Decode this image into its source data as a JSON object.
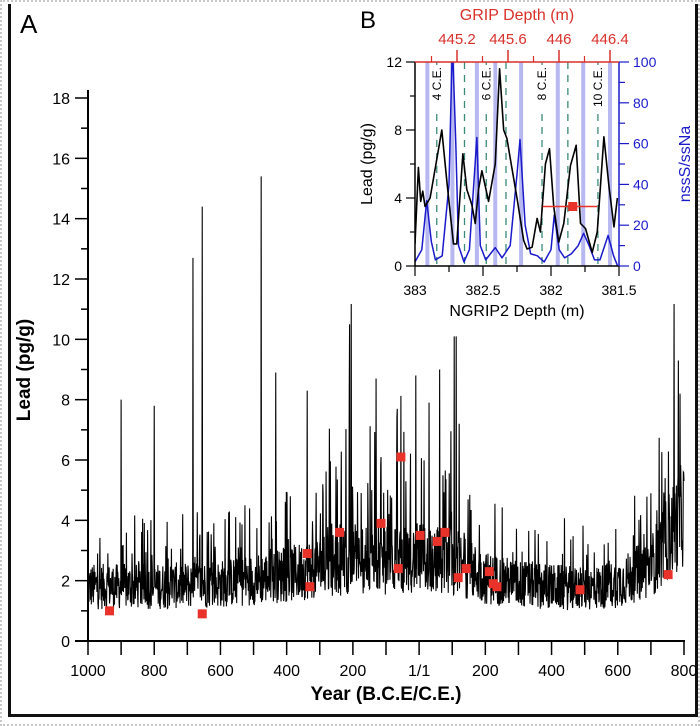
{
  "chart_data": [
    {
      "panel_label": "A",
      "type": "line",
      "xlabel": "Year (B.C.E/C.E.)",
      "ylabel": "Lead (pg/g)",
      "xlim": [
        -1000,
        800
      ],
      "ylim": [
        0,
        18
      ],
      "x_ticks": [
        -1000,
        -800,
        -600,
        -400,
        -200,
        0,
        200,
        400,
        600,
        800
      ],
      "x_tick_labels": [
        "1000",
        "800",
        "600",
        "400",
        "200",
        "1/1",
        "200",
        "400",
        "600",
        "800"
      ],
      "y_ticks": [
        0,
        2,
        4,
        6,
        8,
        10,
        12,
        14,
        16,
        18
      ],
      "y_tick_labels": [
        "0",
        "2",
        "4",
        "6",
        "8",
        "10",
        "12",
        "14",
        "16",
        "18"
      ],
      "grid": false,
      "line_color": "#000000",
      "baseline_level": [
        [
          -1000,
          1.9
        ],
        [
          -800,
          1.9
        ],
        [
          -600,
          2.0
        ],
        [
          -400,
          2.3
        ],
        [
          -300,
          2.6
        ],
        [
          -200,
          2.8
        ],
        [
          -100,
          2.8
        ],
        [
          0,
          2.9
        ],
        [
          100,
          2.8
        ],
        [
          200,
          2.2
        ],
        [
          300,
          2.0
        ],
        [
          400,
          1.9
        ],
        [
          500,
          1.8
        ],
        [
          600,
          2.0
        ],
        [
          700,
          2.6
        ],
        [
          750,
          3.6
        ],
        [
          800,
          4.5
        ]
      ],
      "spikes": [
        [
          -900,
          8.0
        ],
        [
          -800,
          7.8
        ],
        [
          -683,
          12.7
        ],
        [
          -655,
          14.4
        ],
        [
          -477,
          15.4
        ],
        [
          -433,
          8.9
        ],
        [
          -338,
          8.3
        ],
        [
          -205,
          11.2
        ],
        [
          -210,
          10.5
        ],
        [
          -130,
          8.7
        ],
        [
          -10,
          8.8
        ],
        [
          62,
          9.0
        ],
        [
          30,
          7.9
        ],
        [
          106,
          10.1
        ],
        [
          112,
          10.1
        ],
        [
          770,
          11.4
        ],
        [
          783,
          9.3
        ],
        [
          788,
          8.2
        ]
      ],
      "markers": {
        "color": "#e8322a",
        "points": [
          [
            -935,
            1.0
          ],
          [
            -655,
            0.9
          ],
          [
            -338,
            2.9
          ],
          [
            -330,
            1.8
          ],
          [
            -240,
            3.6
          ],
          [
            -115,
            3.9
          ],
          [
            -63,
            2.4
          ],
          [
            -55,
            6.1
          ],
          [
            3,
            3.5
          ],
          [
            55,
            3.3
          ],
          [
            78,
            3.6
          ],
          [
            118,
            2.1
          ],
          [
            142,
            2.4
          ],
          [
            212,
            2.3
          ],
          [
            224,
            1.9
          ],
          [
            235,
            1.8
          ],
          [
            486,
            1.7
          ],
          [
            752,
            2.2
          ]
        ]
      }
    },
    {
      "panel_label": "B",
      "type": "line",
      "xlabel": "NGRIP2 Depth (m)",
      "x_top_label": "GRIP Depth (m)",
      "ylabel": "Lead (pg/g)",
      "y2label": "nssS/ssNa",
      "xlim": [
        383,
        381.5
      ],
      "x_ticks": [
        383,
        382.5,
        382,
        381.5
      ],
      "x_tick_labels": [
        "383",
        "382.5",
        "382",
        "381.5"
      ],
      "x_top_ticks": [
        445.2,
        445.6,
        446,
        446.4
      ],
      "x_top_tick_labels": [
        "445.2",
        "445.6",
        "446",
        "446.4"
      ],
      "ylim": [
        0,
        12
      ],
      "y_ticks": [
        0,
        4,
        8,
        12
      ],
      "y_tick_labels": [
        "0",
        "4",
        "8",
        "12"
      ],
      "y2lim": [
        0,
        100
      ],
      "y2_ticks": [
        0,
        20,
        40,
        60,
        80,
        100
      ],
      "y2_tick_labels": [
        "0",
        "20",
        "40",
        "60",
        "80",
        "100"
      ],
      "colors": {
        "lead": "#000000",
        "ratio": "#1a1acc",
        "top_axis": "#d9302a",
        "bands": "#b8b8f0",
        "year_lines": "#3a8a7a",
        "marker": "#e8322a"
      },
      "lead_series": [
        [
          383.0,
          1.3
        ],
        [
          382.975,
          5.8
        ],
        [
          382.958,
          3.8
        ],
        [
          382.943,
          4.4
        ],
        [
          382.926,
          3.5
        ],
        [
          382.889,
          4.0
        ],
        [
          382.835,
          6.5
        ],
        [
          382.803,
          8.0
        ],
        [
          382.766,
          5.0
        ],
        [
          382.717,
          1.3
        ],
        [
          382.693,
          1.3
        ],
        [
          382.648,
          6.6
        ],
        [
          382.619,
          4.5
        ],
        [
          382.582,
          3.6
        ],
        [
          382.557,
          2.5
        ],
        [
          382.533,
          4.5
        ],
        [
          382.508,
          5.6
        ],
        [
          382.459,
          3.8
        ],
        [
          382.41,
          6.0
        ],
        [
          382.378,
          11.6
        ],
        [
          382.348,
          8.0
        ],
        [
          382.324,
          7.5
        ],
        [
          382.299,
          6.3
        ],
        [
          382.25,
          4.0
        ],
        [
          382.201,
          1.5
        ],
        [
          382.176,
          1.0
        ],
        [
          382.139,
          1.1
        ],
        [
          382.102,
          2.8
        ],
        [
          382.078,
          2.0
        ],
        [
          382.041,
          6.0
        ],
        [
          382.011,
          6.9
        ],
        [
          381.98,
          3.5
        ],
        [
          381.943,
          1.4
        ],
        [
          381.906,
          2.5
        ],
        [
          381.857,
          5.9
        ],
        [
          381.815,
          7.1
        ],
        [
          381.783,
          2.5
        ],
        [
          381.746,
          2.2
        ],
        [
          381.697,
          0.8
        ],
        [
          381.66,
          2.0
        ],
        [
          381.611,
          7.6
        ],
        [
          381.574,
          4.7
        ],
        [
          381.537,
          2.3
        ],
        [
          381.512,
          4.0
        ]
      ],
      "ratio_series": [
        [
          383.0,
          2
        ],
        [
          382.95,
          8
        ],
        [
          382.914,
          32
        ],
        [
          382.88,
          12
        ],
        [
          382.85,
          3
        ],
        [
          382.8,
          5
        ],
        [
          382.75,
          40
        ],
        [
          382.725,
          110
        ],
        [
          382.7,
          60
        ],
        [
          382.68,
          10
        ],
        [
          382.64,
          2
        ],
        [
          382.6,
          8
        ],
        [
          382.545,
          63
        ],
        [
          382.52,
          10
        ],
        [
          382.48,
          3
        ],
        [
          382.41,
          9
        ],
        [
          382.36,
          4
        ],
        [
          382.3,
          10
        ],
        [
          382.25,
          45
        ],
        [
          382.228,
          62
        ],
        [
          382.19,
          20
        ],
        [
          382.15,
          6
        ],
        [
          382.1,
          5
        ],
        [
          382.05,
          2
        ],
        [
          382.0,
          8
        ],
        [
          381.976,
          25
        ],
        [
          381.94,
          8
        ],
        [
          381.9,
          4
        ],
        [
          381.85,
          6
        ],
        [
          381.8,
          10
        ],
        [
          381.76,
          16
        ],
        [
          381.72,
          10
        ],
        [
          381.68,
          3
        ],
        [
          381.64,
          3
        ],
        [
          381.58,
          15
        ],
        [
          381.54,
          5
        ],
        [
          381.51,
          0
        ]
      ],
      "bands": [
        382.909,
        382.725,
        382.545,
        382.41,
        382.22,
        381.95,
        381.763,
        381.566
      ],
      "year_lines": [
        382.84,
        382.636,
        382.476,
        382.331,
        382.066,
        381.876,
        381.655
      ],
      "year_labels": [
        {
          "depth": 382.84,
          "text": "4 C.E."
        },
        {
          "depth": 382.476,
          "text": "6 C.E."
        },
        {
          "depth": 382.066,
          "text": "8 C.E."
        },
        {
          "depth": 381.655,
          "text": "10 C.E."
        }
      ],
      "marker": {
        "depth": 381.84,
        "value": 3.5,
        "depth_range": [
          382.061,
          381.66
        ]
      }
    }
  ]
}
